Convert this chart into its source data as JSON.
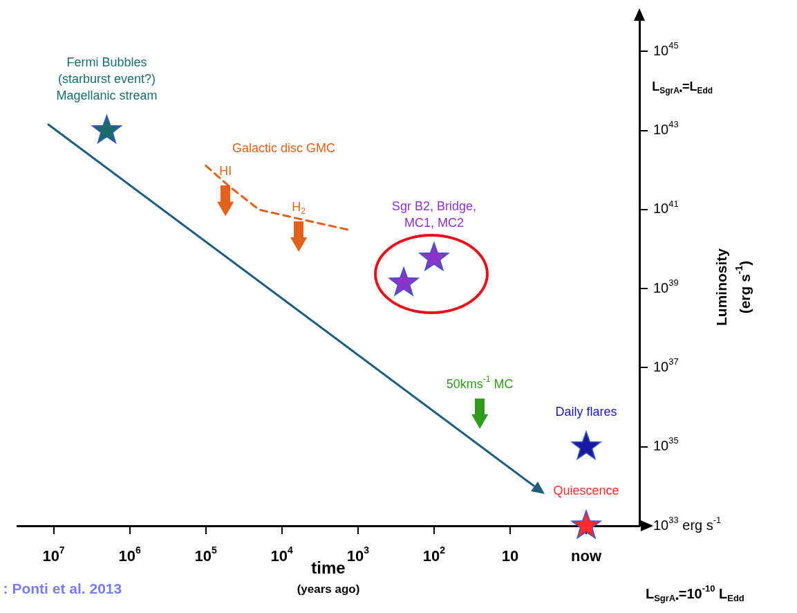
{
  "chart_data": {
    "type": "scatter",
    "xlabel": "time\n(years ago)",
    "ylabel": "Luminosity\n(erg s$^{-1}$)",
    "log": "xy",
    "xlim": [
      30000000.0,
      0.2
    ],
    "ylim": [
      1e+33,
      6e+45
    ],
    "xticks": [
      {
        "value": 10000000.0,
        "label": "10$^{7}$"
      },
      {
        "value": 1000000.0,
        "label": "10$^{6}$"
      },
      {
        "value": 100000.0,
        "label": "10$^{5}$"
      },
      {
        "value": 10000.0,
        "label": "10$^{4}$"
      },
      {
        "value": 1000.0,
        "label": "10$^{3}$"
      },
      {
        "value": 100,
        "label": "10$^{2}$"
      },
      10,
      {
        "value": 1,
        "label": "now"
      }
    ],
    "yticks": [
      {
        "value": 1e+33,
        "label": "10$^{33}$ erg s$^{-1}$"
      },
      {
        "value": 1e+35,
        "label": "10$^{35}$"
      },
      {
        "value": 1e+37,
        "label": "10$^{37}$"
      },
      {
        "value": 1e+39,
        "label": "10$^{39}$"
      },
      {
        "value": 1e+41,
        "label": "10$^{41}$"
      },
      {
        "value": 1e+43,
        "label": "10$^{43}$"
      },
      {
        "value": 1e+45,
        "label": "10$^{45}$"
      }
    ],
    "grid": false,
    "legend": false,
    "series": [
      {
        "type": "line",
        "color": "#e2621b",
        "x": [
          100000.0,
          50000.0,
          20000.0,
          6300,
          1250
        ],
        "values": [
          1.3e+42,
          4e+41,
          1e+41,
          6e+40,
          3e+40
        ],
        "marker": "none",
        "line_style": "dashed"
      },
      {
        "type": "scatter",
        "color": "#1c6b6b",
        "x": [
          2000000.0
        ],
        "values": [
          1e+43
        ],
        "marker": "star"
      },
      {
        "type": "scatter",
        "color": "#e2621b",
        "x": [
          55000.0,
          6000
        ],
        "values": [
          1.2e+41,
          1.5e+40
        ],
        "marker": "triangle"
      },
      {
        "type": "scatter",
        "color": "#8b35c8",
        "x": [
          250,
          100
        ],
        "values": [
          1.4e+39,
          6e+39
        ],
        "marker": "star"
      },
      {
        "type": "scatter",
        "color": "#2f9a1e",
        "x": [
          25
        ],
        "values": [
          5e+35
        ],
        "marker": "triangle"
      },
      {
        "type": "scatter",
        "color": "#1a1aa0",
        "x": [
          1
        ],
        "values": [
          1e+35
        ],
        "marker": "star"
      },
      {
        "type": "scatter",
        "color": "#ff2a2a",
        "x": [
          1
        ],
        "values": [
          1e+33
        ],
        "marker": "star"
      }
    ],
    "annotations": [
      {
        "text": "Fermi Bubbles\n(starburst event?)\nMagellanic stream",
        "x": 2000000.0,
        "y": 1e+43
      },
      {
        "text": "HI",
        "x": 55000.0,
        "y": 1.2e+41
      },
      {
        "text": "H$_{2}$",
        "x": 6000,
        "y": 1.5e+40
      },
      {
        "text": "Sgr B2, Bridge,\nMC1, MC2",
        "x": 100,
        "y": 6e+39
      },
      {
        "text": "50kms$^{-1}$ MC",
        "x": 25,
        "y": 5e+35
      },
      {
        "text": "Daily flares",
        "x": 1,
        "y": 1e+35
      },
      {
        "text": "Quiescence",
        "x": 1,
        "y": 1e+33
      },
      ": Ponti et al. 2013",
      "Galactic disc GMC",
      "L$_{SgrA•}$=L$_{Edd}$",
      "L$_{SgrA•}$=10$^{-10}$ L$_{Edd}$"
    ]
  }
}
